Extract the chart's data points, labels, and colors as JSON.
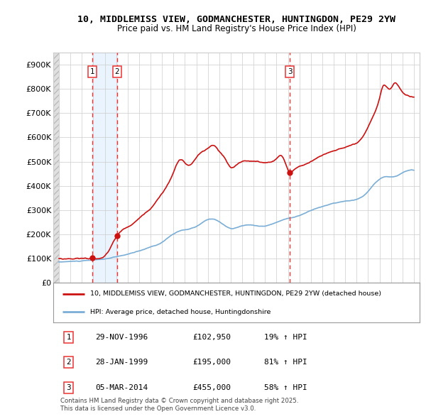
{
  "title": "10, MIDDLEMISS VIEW, GODMANCHESTER, HUNTINGDON, PE29 2YW",
  "subtitle": "Price paid vs. HM Land Registry's House Price Index (HPI)",
  "xlim": [
    1993.5,
    2025.5
  ],
  "ylim": [
    0,
    950000
  ],
  "yticks": [
    0,
    100000,
    200000,
    300000,
    400000,
    500000,
    600000,
    700000,
    800000,
    900000
  ],
  "ytick_labels": [
    "£0",
    "£100K",
    "£200K",
    "£300K",
    "£400K",
    "£500K",
    "£600K",
    "£700K",
    "£800K",
    "£900K"
  ],
  "sale_dates": [
    1996.913,
    1999.074,
    2014.175
  ],
  "sale_prices": [
    102950,
    195000,
    455000
  ],
  "sale_labels": [
    "1",
    "2",
    "3"
  ],
  "hpi_color": "#7aaed6",
  "price_color": "#cc1111",
  "vline_color": "#ee3333",
  "legend_label_red": "10, MIDDLEMISS VIEW, GODMANCHESTER, HUNTINGDON, PE29 2YW (detached house)",
  "legend_label_blue": "HPI: Average price, detached house, Huntingdonshire",
  "table_data": [
    [
      "1",
      "29-NOV-1996",
      "£102,950",
      "19% ↑ HPI"
    ],
    [
      "2",
      "28-JAN-1999",
      "£195,000",
      "81% ↑ HPI"
    ],
    [
      "3",
      "05-MAR-2014",
      "£455,000",
      "58% ↑ HPI"
    ]
  ],
  "footnote": "Contains HM Land Registry data © Crown copyright and database right 2025.\nThis data is licensed under the Open Government Licence v3.0.",
  "grid_color": "#cccccc",
  "hatch_fill_color": "#dde8f0",
  "between_vlines_fill": "#ddeeff"
}
